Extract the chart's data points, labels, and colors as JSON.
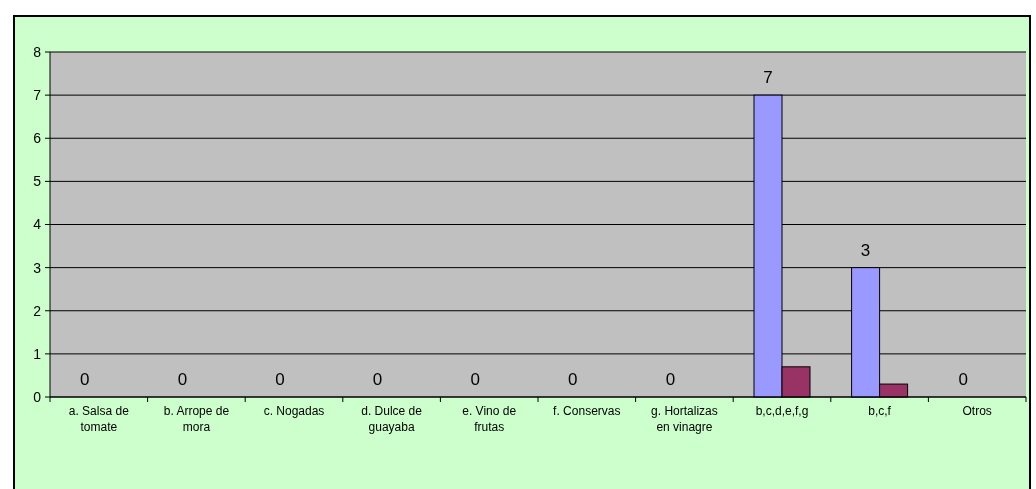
{
  "chart_data": {
    "type": "bar",
    "categories": [
      "a. Salsa de tomate",
      "b. Arrope de mora",
      "c. Nogadas",
      "d. Dulce de guayaba",
      "e. Vino de frutas",
      "f. Conservas",
      "g. Hortalizas en vinagre",
      "b,c,d,e,f,g",
      "b,c,f",
      "Otros"
    ],
    "series": [
      {
        "color": "#9999ff",
        "values": [
          0,
          0,
          0,
          0,
          0,
          0,
          0,
          7,
          3,
          0
        ],
        "value_labels": [
          "0",
          "0",
          "0",
          "0",
          "0",
          "0",
          "0",
          "7",
          "3",
          "0"
        ]
      },
      {
        "color": "#993366",
        "values": [
          0,
          0,
          0,
          0,
          0,
          0,
          0,
          0.7,
          0.3,
          0
        ]
      }
    ],
    "ylim": [
      0,
      8
    ],
    "yticks": [
      0,
      1,
      2,
      3,
      4,
      5,
      6,
      7,
      8
    ],
    "grid": "y"
  }
}
